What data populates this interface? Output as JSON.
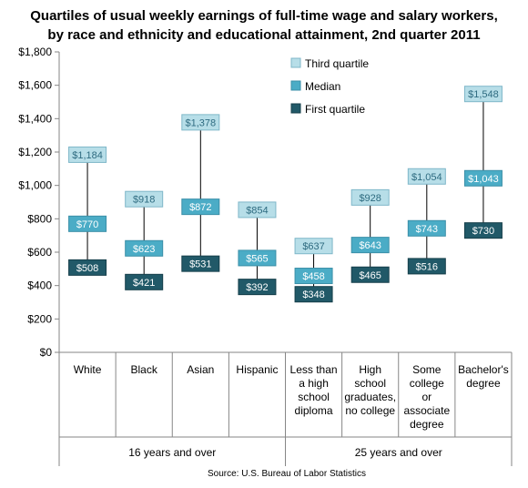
{
  "chart_data": {
    "type": "box",
    "title_lines": [
      "Quartiles of usual weekly earnings of full-time wage and salary workers,",
      "by race and ethnicity and educational attainment, 2nd quarter 2011"
    ],
    "source": "Source: U.S. Bureau of Labor Statistics",
    "ylim": [
      0,
      1800
    ],
    "yticks": [
      {
        "value": 0,
        "label": "$0"
      },
      {
        "value": 200,
        "label": "$200"
      },
      {
        "value": 400,
        "label": "$400"
      },
      {
        "value": 600,
        "label": "$600"
      },
      {
        "value": 800,
        "label": "$800"
      },
      {
        "value": 1000,
        "label": "$1,000"
      },
      {
        "value": 1200,
        "label": "$1,200"
      },
      {
        "value": 1400,
        "label": "$1,400"
      },
      {
        "value": 1600,
        "label": "$1,600"
      },
      {
        "value": 1800,
        "label": "$1,800"
      }
    ],
    "categories": [
      {
        "lines": [
          "White"
        ],
        "first_quartile": 508,
        "median": 770,
        "third_quartile": 1184,
        "labels": {
          "first_quartile": "$508",
          "median": "$770",
          "third_quartile": "$1,184"
        }
      },
      {
        "lines": [
          "Black"
        ],
        "first_quartile": 421,
        "median": 623,
        "third_quartile": 918,
        "labels": {
          "first_quartile": "$421",
          "median": "$623",
          "third_quartile": "$918"
        }
      },
      {
        "lines": [
          "Asian"
        ],
        "first_quartile": 531,
        "median": 872,
        "third_quartile": 1378,
        "labels": {
          "first_quartile": "$531",
          "median": "$872",
          "third_quartile": "$1,378"
        }
      },
      {
        "lines": [
          "Hispanic"
        ],
        "first_quartile": 392,
        "median": 565,
        "third_quartile": 854,
        "labels": {
          "first_quartile": "$392",
          "median": "$565",
          "third_quartile": "$854"
        }
      },
      {
        "lines": [
          "Less than",
          "a high",
          "school",
          "diploma"
        ],
        "first_quartile": 348,
        "median": 458,
        "third_quartile": 637,
        "labels": {
          "first_quartile": "$348",
          "median": "$458",
          "third_quartile": "$637"
        }
      },
      {
        "lines": [
          "High",
          "school",
          "graduates,",
          "no college"
        ],
        "first_quartile": 465,
        "median": 643,
        "third_quartile": 928,
        "labels": {
          "first_quartile": "$465",
          "median": "$643",
          "third_quartile": "$928"
        }
      },
      {
        "lines": [
          "Some",
          "college",
          "or",
          "associate",
          "degree"
        ],
        "first_quartile": 516,
        "median": 743,
        "third_quartile": 1054,
        "labels": {
          "first_quartile": "$516",
          "median": "$743",
          "third_quartile": "$1,054"
        }
      },
      {
        "lines": [
          "Bachelor's",
          "degree"
        ],
        "first_quartile": 730,
        "median": 1043,
        "third_quartile": 1548,
        "labels": {
          "first_quartile": "$730",
          "median": "$1,043",
          "third_quartile": "$1,548"
        }
      }
    ],
    "groups": [
      {
        "label": "16 years and over",
        "span": [
          0,
          3
        ]
      },
      {
        "label": "25 years and over",
        "span": [
          4,
          7
        ]
      }
    ],
    "legend": [
      {
        "key": "third_quartile",
        "label": "Third quartile"
      },
      {
        "key": "median",
        "label": "Median"
      },
      {
        "key": "first_quartile",
        "label": "First quartile"
      }
    ],
    "colors": {
      "third_quartile": {
        "fill": "#b7dee8",
        "stroke": "#7fb7c9",
        "text": "#2e6b80"
      },
      "median": {
        "fill": "#4bacc6",
        "stroke": "#3b8fa8",
        "text": "#ffffff"
      },
      "first_quartile": {
        "fill": "#215968",
        "stroke": "#163f4a",
        "text": "#ffffff"
      }
    }
  }
}
